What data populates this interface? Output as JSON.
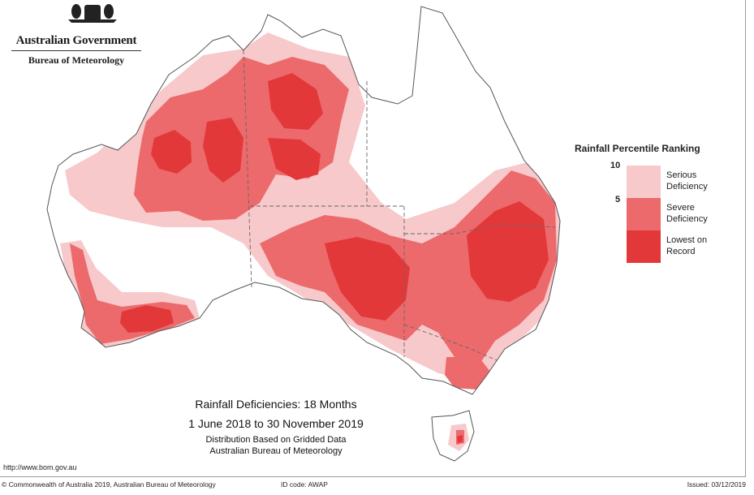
{
  "header": {
    "organisation": "Australian Government",
    "agency": "Bureau of Meteorology"
  },
  "map": {
    "subject": "Australia",
    "colors": {
      "land": "#ffffff",
      "outline": "#555555",
      "serious_deficiency": "#f7c9cb",
      "severe_deficiency": "#ec6a6c",
      "lowest_on_record": "#e3383a"
    }
  },
  "legend": {
    "title": "Rainfall Percentile Ranking",
    "scale_labels": [
      "10",
      "5"
    ],
    "categories": [
      {
        "line1": "Serious",
        "line2": "Deficiency",
        "color": "#f7c9cb"
      },
      {
        "line1": "Severe",
        "line2": "Deficiency",
        "color": "#ec6a6c"
      },
      {
        "line1": "Lowest on",
        "line2": "Record",
        "color": "#e3383a"
      }
    ]
  },
  "titles": {
    "main": "Rainfall Deficiencies: 18 Months",
    "period": "1 June 2018 to 30 November 2019",
    "note1": "Distribution Based on Gridded Data",
    "note2": "Australian Bureau of Meteorology"
  },
  "footer": {
    "url": "http://www.bom.gov.au",
    "copyright": "© Commonwealth of Australia 2019, Australian Bureau of Meteorology",
    "id_code": "ID code: AWAP",
    "issued": "Issued: 03/12/2019"
  }
}
